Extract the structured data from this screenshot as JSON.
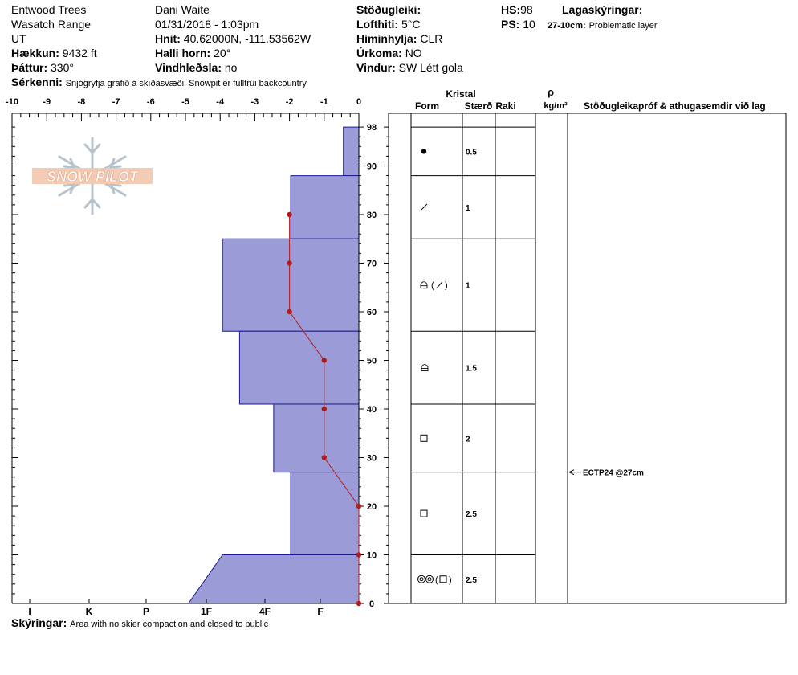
{
  "header": {
    "location": "Entwood Trees",
    "range": "Wasatch Range",
    "state": "UT",
    "elevation_label": "Hækkun:",
    "elevation": "9432 ft",
    "aspect_label": "Þáttur:",
    "aspect": "330°",
    "features_label": "Sérkenni:",
    "features": "Snjógryfja grafið á skíðasvæði; Snowpit er fulltrúi backcountry",
    "observer": "Dani Waite",
    "datetime": "01/31/2018 - 1:03pm",
    "coords_label": "Hnit:",
    "coords": "40.62000N, -111.53562W",
    "slope_label": "Halli horn:",
    "slope": "20°",
    "wind_loading_label": "Vindhleðsla:",
    "wind_loading": "no",
    "stability_label": "Stöðugleiki:",
    "stability": "",
    "air_temp_label": "Lofthiti:",
    "air_temp": "5°C",
    "sky_label": "Himinhylja:",
    "sky": "CLR",
    "precip_label": "Úrkoma:",
    "precip": "NO",
    "wind_label": "Vindur:",
    "wind": "SW Létt gola",
    "hs_label": "HS:",
    "hs": "98",
    "ps_label": "PS:",
    "ps": "10",
    "layer_notes_label": "Lagaskýringar:",
    "layer_note_range": "27-10cm:",
    "layer_note_text": "Problematic layer",
    "notes_label": "Skýringar:",
    "notes": "Area with no skier compaction and closed to public",
    "logo_text": "SNOW PILOT"
  },
  "columns": {
    "crystal": "Kristal",
    "form": "Form",
    "size": "Stærð",
    "moisture": "Raki",
    "rho": "ρ",
    "density_unit": "kg/m³",
    "tests": "Stöðugleikapróf & athugasemdir við lag"
  },
  "chart_data": {
    "type": "snow_profile",
    "temp_axis": {
      "label_values": [
        -10,
        -9,
        -8,
        -7,
        -6,
        -5,
        -4,
        -3,
        -2,
        -1,
        0
      ],
      "range": [
        -10,
        0
      ]
    },
    "height_axis": {
      "range": [
        0,
        98
      ],
      "ticks": [
        0,
        10,
        20,
        30,
        40,
        50,
        60,
        70,
        80,
        90,
        98
      ],
      "unit": "cm"
    },
    "hardness_scale": [
      "I",
      "K",
      "P",
      "1F",
      "4F",
      "F"
    ],
    "layers": [
      {
        "top": 98,
        "bottom": 88,
        "hardness_top": 0.5,
        "hardness_bottom": 0.5,
        "grain": "round",
        "size": "0.5"
      },
      {
        "top": 88,
        "bottom": 75,
        "hardness_top": 2.2,
        "hardness_bottom": 2.2,
        "grain": "decomposing",
        "size": "1"
      },
      {
        "top": 75,
        "bottom": 56,
        "hardness_top": 4.4,
        "hardness_bottom": 4.4,
        "grain": "mixed-decomposing",
        "size": "1"
      },
      {
        "top": 56,
        "bottom": 41,
        "hardness_top": 3.85,
        "hardness_bottom": 3.85,
        "grain": "mixed-form",
        "size": "1.5"
      },
      {
        "top": 41,
        "bottom": 27,
        "hardness_top": 2.75,
        "hardness_bottom": 2.75,
        "grain": "faceted",
        "size": "2"
      },
      {
        "top": 27,
        "bottom": 10,
        "hardness_top": 2.2,
        "hardness_bottom": 2.2,
        "grain": "faceted",
        "size": "2.5"
      },
      {
        "top": 10,
        "bottom": 0,
        "hardness_top": 4.4,
        "hardness_bottom": 5.5,
        "grain": "melt-freeze",
        "size": "2.5"
      }
    ],
    "temperature_profile": [
      {
        "depth": 80,
        "temp": -2
      },
      {
        "depth": 70,
        "temp": -2
      },
      {
        "depth": 60,
        "temp": -2
      },
      {
        "depth": 50,
        "temp": -1
      },
      {
        "depth": 40,
        "temp": -1
      },
      {
        "depth": 30,
        "temp": -1
      },
      {
        "depth": 20,
        "temp": 0
      },
      {
        "depth": 10,
        "temp": 0
      },
      {
        "depth": 0,
        "temp": 0
      }
    ],
    "stability_tests": [
      {
        "depth": 27,
        "label": "ECTP24 @27cm"
      }
    ]
  },
  "colors": {
    "hardness_fill": "#9b9bd8",
    "hardness_stroke": "#1a1a8c",
    "temperature": "#b31b1b"
  }
}
